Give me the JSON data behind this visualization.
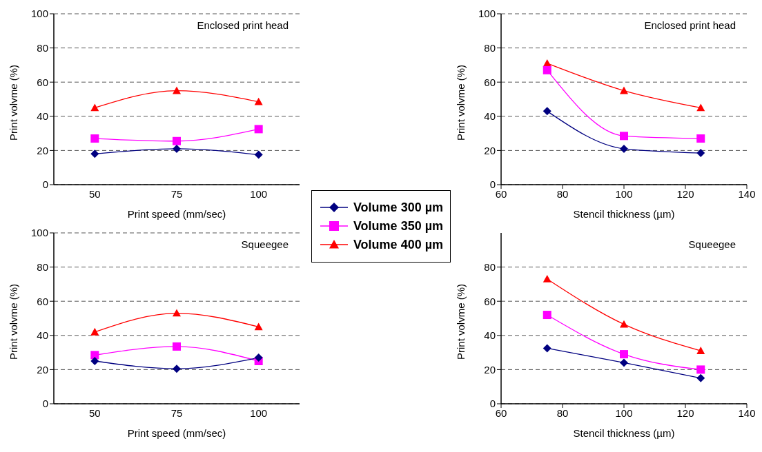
{
  "chart_data": [
    {
      "type": "line",
      "categories": [
        "50",
        "75",
        "100"
      ],
      "xlabel": "Print speed (mm/sec)",
      "ylabel": "Print volvme (%)",
      "ylim": [
        0,
        100
      ],
      "yticks": [
        0,
        20,
        40,
        60,
        80,
        100
      ],
      "grid": "y",
      "legend": "right",
      "annotations": [
        "Enclosed print head"
      ],
      "series": [
        {
          "name": "Volume 300 µm",
          "color": "#000080",
          "marker": "diamond",
          "values": [
            18,
            21,
            17.5
          ]
        },
        {
          "name": "Volume 350 µm",
          "color": "#ff00ff",
          "marker": "square",
          "values": [
            27,
            25.5,
            32.5
          ]
        },
        {
          "name": "Volume 400 µm",
          "color": "#ff0000",
          "marker": "triangle",
          "values": [
            45,
            55,
            48.5
          ]
        }
      ]
    },
    {
      "type": "line",
      "x": [
        75,
        100,
        125
      ],
      "xlim": [
        60,
        140
      ],
      "xticks": [
        60,
        80,
        100,
        120,
        140
      ],
      "xlabel": "Stencil thickness (µm)",
      "ylabel": "Print volvme (%)",
      "ylim": [
        0,
        100
      ],
      "yticks": [
        0,
        20,
        40,
        60,
        80,
        100
      ],
      "grid": "y",
      "annotations": [
        "Enclosed print head"
      ],
      "series": [
        {
          "color": "#000080",
          "marker": "diamond",
          "values": [
            43,
            21,
            18.5
          ]
        },
        {
          "color": "#ff00ff",
          "marker": "square",
          "values": [
            67,
            28.5,
            27
          ]
        },
        {
          "color": "#ff0000",
          "marker": "triangle",
          "values": [
            71,
            55,
            45
          ]
        }
      ]
    },
    {
      "type": "line",
      "categories": [
        "50",
        "75",
        "100"
      ],
      "xlabel": "Print speed (mm/sec)",
      "ylabel": "Print volvme (%)",
      "ylim": [
        0,
        100
      ],
      "yticks": [
        0,
        20,
        40,
        60,
        80,
        100
      ],
      "grid": "y",
      "annotations": [
        "Squeegee"
      ],
      "series": [
        {
          "color": "#000080",
          "marker": "diamond",
          "values": [
            25,
            20.5,
            27
          ]
        },
        {
          "color": "#ff00ff",
          "marker": "square",
          "values": [
            28.5,
            33.5,
            25
          ]
        },
        {
          "color": "#ff0000",
          "marker": "triangle",
          "values": [
            42,
            53,
            45
          ]
        }
      ]
    },
    {
      "type": "line",
      "x": [
        75,
        100,
        125
      ],
      "xlim": [
        60,
        140
      ],
      "xticks": [
        60,
        80,
        100,
        120,
        140
      ],
      "xlabel": "Stencil thickness (µm)",
      "ylabel": "Print volvme (%)",
      "ylim": [
        0,
        100
      ],
      "yticks": [
        0,
        20,
        40,
        60,
        80
      ],
      "grid": "y",
      "annotations": [
        "Squeegee"
      ],
      "series": [
        {
          "color": "#000080",
          "marker": "diamond",
          "values": [
            32.5,
            24,
            15
          ]
        },
        {
          "color": "#ff00ff",
          "marker": "square",
          "values": [
            52,
            29,
            20
          ]
        },
        {
          "color": "#ff0000",
          "marker": "triangle",
          "values": [
            73,
            46.5,
            31
          ]
        }
      ]
    }
  ]
}
